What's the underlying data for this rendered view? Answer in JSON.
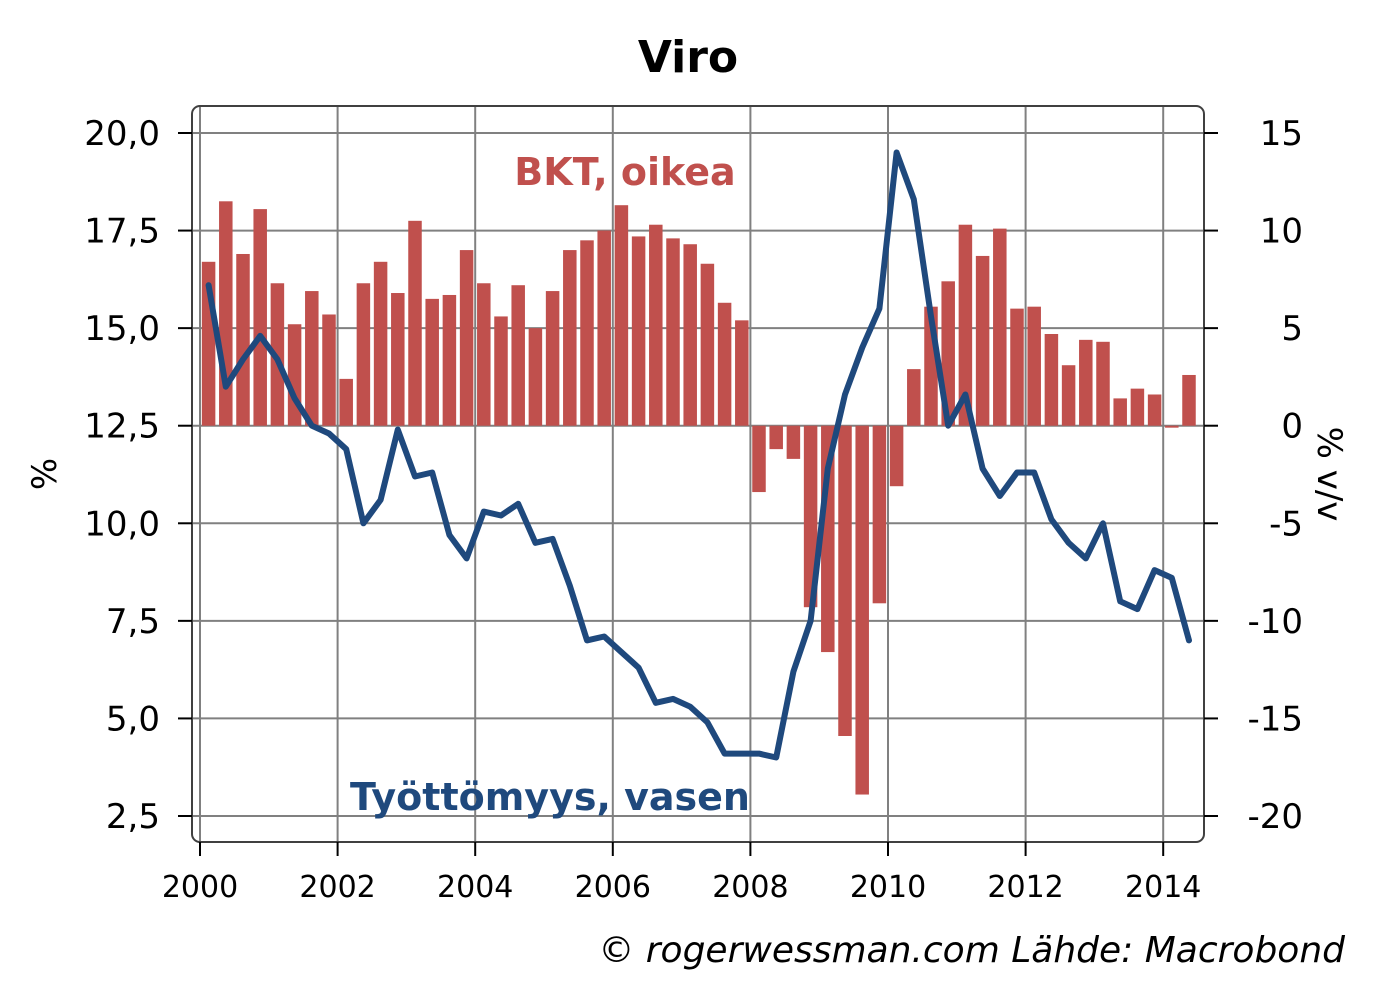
{
  "chart_data": {
    "type": "bar+line",
    "title": "Viro",
    "left_axis": {
      "label": "%",
      "range": [
        2.5,
        20.0
      ],
      "ticks": [
        "2,5",
        "5,0",
        "7,5",
        "10,0",
        "12,5",
        "15,0",
        "17,5",
        "20,0"
      ],
      "tick_values": [
        2.5,
        5.0,
        7.5,
        10.0,
        12.5,
        15.0,
        17.5,
        20.0
      ]
    },
    "right_axis": {
      "label": "% v/v",
      "range": [
        -20,
        15
      ],
      "ticks": [
        "-20",
        "-15",
        "-10",
        "-5",
        "0",
        "5",
        "10",
        "15"
      ],
      "tick_values": [
        -20,
        -15,
        -10,
        -5,
        0,
        5,
        10,
        15
      ]
    },
    "x_axis": {
      "range": [
        2000.0,
        2014.6
      ],
      "ticks": [
        "2000",
        "2002",
        "2004",
        "2006",
        "2008",
        "2010",
        "2012",
        "2014"
      ],
      "tick_values": [
        2000,
        2002,
        2004,
        2006,
        2008,
        2010,
        2012,
        2014
      ]
    },
    "grid": true,
    "series": [
      {
        "name": "BKT, oikea",
        "type": "bar",
        "axis": "right",
        "color": "#c0504d",
        "x": [
          2000.125,
          2000.375,
          2000.625,
          2000.875,
          2001.125,
          2001.375,
          2001.625,
          2001.875,
          2002.125,
          2002.375,
          2002.625,
          2002.875,
          2003.125,
          2003.375,
          2003.625,
          2003.875,
          2004.125,
          2004.375,
          2004.625,
          2004.875,
          2005.125,
          2005.375,
          2005.625,
          2005.875,
          2006.125,
          2006.375,
          2006.625,
          2006.875,
          2007.125,
          2007.375,
          2007.625,
          2007.875,
          2008.125,
          2008.375,
          2008.625,
          2008.875,
          2009.125,
          2009.375,
          2009.625,
          2009.875,
          2010.125,
          2010.375,
          2010.625,
          2010.875,
          2011.125,
          2011.375,
          2011.625,
          2011.875,
          2012.125,
          2012.375,
          2012.625,
          2012.875,
          2013.125,
          2013.375,
          2013.625,
          2013.875,
          2014.125,
          2014.375
        ],
        "values": [
          8.4,
          11.5,
          8.8,
          11.1,
          7.3,
          5.2,
          6.9,
          5.7,
          2.4,
          7.3,
          8.4,
          6.8,
          10.5,
          6.5,
          6.7,
          9.0,
          7.3,
          5.6,
          7.2,
          5.0,
          6.9,
          9.0,
          9.5,
          10.0,
          11.3,
          9.7,
          10.3,
          9.6,
          9.3,
          8.3,
          6.3,
          5.4,
          -3.4,
          -1.2,
          -1.7,
          -9.3,
          -11.6,
          -15.9,
          -18.9,
          -9.1,
          -3.1,
          2.9,
          6.1,
          7.4,
          10.3,
          8.7,
          10.1,
          6.0,
          6.1,
          4.7,
          3.1,
          4.4,
          4.3,
          1.4,
          1.9,
          1.6,
          -0.1,
          2.6
        ]
      },
      {
        "name": "Työttömyys, vasen",
        "type": "line",
        "axis": "left",
        "color": "#1f497d",
        "x": [
          2000.125,
          2000.375,
          2000.625,
          2000.875,
          2001.125,
          2001.375,
          2001.625,
          2001.875,
          2002.125,
          2002.375,
          2002.625,
          2002.875,
          2003.125,
          2003.375,
          2003.625,
          2003.875,
          2004.125,
          2004.375,
          2004.625,
          2004.875,
          2005.125,
          2005.375,
          2005.625,
          2005.875,
          2006.125,
          2006.375,
          2006.625,
          2006.875,
          2007.125,
          2007.375,
          2007.625,
          2007.875,
          2008.125,
          2008.375,
          2008.625,
          2008.875,
          2009.125,
          2009.375,
          2009.625,
          2009.875,
          2010.125,
          2010.375,
          2010.625,
          2010.875,
          2011.125,
          2011.375,
          2011.625,
          2011.875,
          2012.125,
          2012.375,
          2012.625,
          2012.875,
          2013.125,
          2013.375,
          2013.625,
          2013.875,
          2014.125,
          2014.375
        ],
        "values": [
          16.1,
          13.5,
          14.2,
          14.8,
          14.2,
          13.2,
          12.5,
          12.3,
          11.9,
          10.0,
          10.6,
          12.4,
          11.2,
          11.3,
          9.7,
          9.1,
          10.3,
          10.2,
          10.5,
          9.5,
          9.6,
          8.4,
          7.0,
          7.1,
          6.7,
          6.3,
          5.4,
          5.5,
          5.3,
          4.9,
          4.1,
          4.1,
          4.1,
          4.0,
          6.2,
          7.5,
          11.4,
          13.3,
          14.5,
          15.5,
          19.5,
          18.3,
          15.3,
          12.5,
          13.3,
          11.4,
          10.7,
          11.3,
          11.3,
          10.1,
          9.5,
          9.1,
          10.0,
          8.0,
          7.8,
          8.8,
          8.6,
          7.0
        ]
      }
    ],
    "annotations": [
      {
        "text": "BKT, oikea",
        "color": "#c0504d"
      },
      {
        "text": "Työttömyys, vasen",
        "color": "#1f497d"
      }
    ],
    "source": "© rogerwessman.com Lähde: Macrobond"
  }
}
